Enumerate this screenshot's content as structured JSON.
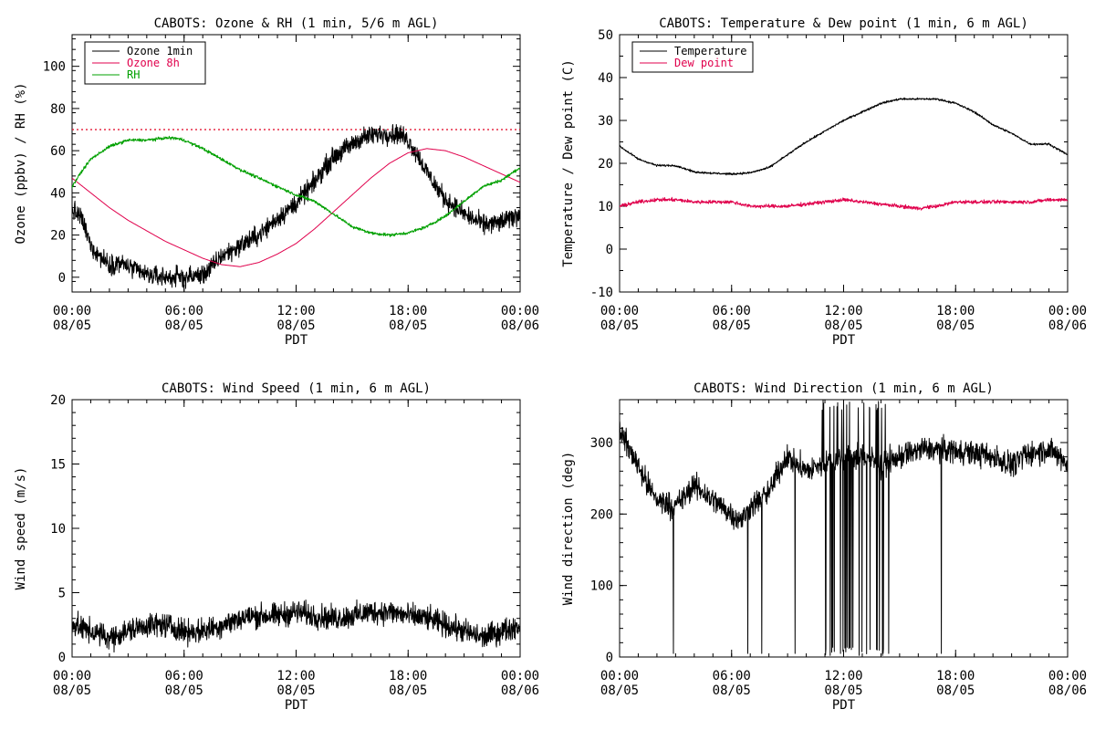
{
  "chart_data": [
    {
      "type": "line",
      "title": "CABOTS: Ozone & RH (1 min, 5/6 m AGL)",
      "xlabel": "PDT",
      "ylabel": "Ozone (ppbv) / RH (%)",
      "xticks": [
        {
          "time": "00:00",
          "date": "08/05"
        },
        {
          "time": "06:00",
          "date": "08/05"
        },
        {
          "time": "12:00",
          "date": "08/05"
        },
        {
          "time": "18:00",
          "date": "08/05"
        },
        {
          "time": "00:00",
          "date": "08/06"
        }
      ],
      "xlim_hours": [
        0,
        24
      ],
      "ylim": [
        -7,
        115
      ],
      "yticks": [
        0,
        20,
        40,
        60,
        80,
        100
      ],
      "grid": false,
      "legend_position": "top-left",
      "reference_line": {
        "y": 70,
        "style": "dotted",
        "color": "#e00020"
      },
      "series": [
        {
          "name": "Ozone 1min",
          "color": "#000000",
          "noise": 4,
          "points": [
            [
              0,
              32
            ],
            [
              0.5,
              28
            ],
            [
              1,
              15
            ],
            [
              1.5,
              10
            ],
            [
              2,
              6
            ],
            [
              2.5,
              7
            ],
            [
              3,
              5
            ],
            [
              3.5,
              3
            ],
            [
              4,
              1
            ],
            [
              5,
              0
            ],
            [
              6,
              0
            ],
            [
              7,
              1
            ],
            [
              7.5,
              5
            ],
            [
              8,
              10
            ],
            [
              9,
              15
            ],
            [
              10,
              20
            ],
            [
              11,
              28
            ],
            [
              12,
              35
            ],
            [
              12.5,
              40
            ],
            [
              13,
              45
            ],
            [
              13.5,
              52
            ],
            [
              14,
              57
            ],
            [
              15,
              63
            ],
            [
              15.5,
              66
            ],
            [
              16,
              67
            ],
            [
              16.5,
              68
            ],
            [
              17,
              68
            ],
            [
              17.5,
              68
            ],
            [
              18,
              65
            ],
            [
              18.5,
              58
            ],
            [
              19,
              50
            ],
            [
              19.5,
              43
            ],
            [
              20,
              37
            ],
            [
              21,
              30
            ],
            [
              22,
              25
            ],
            [
              23,
              26
            ],
            [
              24,
              30
            ]
          ]
        },
        {
          "name": "Ozone 8h",
          "color": "#e0004c",
          "noise": 0,
          "points": [
            [
              0,
              47
            ],
            [
              1,
              40
            ],
            [
              2,
              33
            ],
            [
              3,
              27
            ],
            [
              4,
              22
            ],
            [
              5,
              17
            ],
            [
              6,
              13
            ],
            [
              7,
              9
            ],
            [
              8,
              6
            ],
            [
              9,
              5
            ],
            [
              10,
              7
            ],
            [
              11,
              11
            ],
            [
              12,
              16
            ],
            [
              13,
              23
            ],
            [
              14,
              31
            ],
            [
              15,
              39
            ],
            [
              16,
              47
            ],
            [
              17,
              54
            ],
            [
              18,
              59
            ],
            [
              19,
              61
            ],
            [
              20,
              60
            ],
            [
              21,
              57
            ],
            [
              22,
              53
            ],
            [
              23,
              49
            ],
            [
              24,
              45
            ]
          ]
        },
        {
          "name": "RH",
          "color": "#00a000",
          "noise": 0.6,
          "points": [
            [
              0,
              43
            ],
            [
              0.5,
              50
            ],
            [
              1,
              56
            ],
            [
              2,
              62
            ],
            [
              3,
              65
            ],
            [
              4,
              65
            ],
            [
              5,
              66
            ],
            [
              5.5,
              66
            ],
            [
              6,
              65
            ],
            [
              7,
              61
            ],
            [
              8,
              56
            ],
            [
              9,
              51
            ],
            [
              10,
              47
            ],
            [
              11,
              43
            ],
            [
              12,
              39
            ],
            [
              13,
              36
            ],
            [
              14,
              30
            ],
            [
              15,
              24
            ],
            [
              16,
              21
            ],
            [
              17,
              20
            ],
            [
              18,
              21
            ],
            [
              19,
              24
            ],
            [
              20,
              29
            ],
            [
              21,
              36
            ],
            [
              22,
              43
            ],
            [
              23,
              46
            ],
            [
              24,
              52
            ]
          ]
        }
      ]
    },
    {
      "type": "line",
      "title": "CABOTS: Temperature & Dew point (1 min, 6 m AGL)",
      "xlabel": "PDT",
      "ylabel": "Temperature / Dew point (C)",
      "xticks": [
        {
          "time": "00:00",
          "date": "08/05"
        },
        {
          "time": "06:00",
          "date": "08/05"
        },
        {
          "time": "12:00",
          "date": "08/05"
        },
        {
          "time": "18:00",
          "date": "08/05"
        },
        {
          "time": "00:00",
          "date": "08/06"
        }
      ],
      "xlim_hours": [
        0,
        24
      ],
      "ylim": [
        -10,
        50
      ],
      "yticks": [
        -10,
        0,
        10,
        20,
        30,
        40,
        50
      ],
      "grid": false,
      "legend_position": "top-left",
      "series": [
        {
          "name": "Temperature",
          "color": "#000000",
          "noise": 0.2,
          "points": [
            [
              0,
              24
            ],
            [
              1,
              21
            ],
            [
              2,
              19.5
            ],
            [
              3,
              19.5
            ],
            [
              4,
              18
            ],
            [
              5,
              17.7
            ],
            [
              6,
              17.5
            ],
            [
              7,
              17.8
            ],
            [
              8,
              19
            ],
            [
              9,
              22
            ],
            [
              10,
              25
            ],
            [
              11,
              27.5
            ],
            [
              12,
              30
            ],
            [
              13,
              32
            ],
            [
              14,
              34
            ],
            [
              15,
              35
            ],
            [
              16,
              35
            ],
            [
              17,
              35
            ],
            [
              18,
              34
            ],
            [
              19,
              32
            ],
            [
              20,
              29
            ],
            [
              21,
              27
            ],
            [
              22,
              24.5
            ],
            [
              23,
              24.5
            ],
            [
              24,
              22
            ]
          ]
        },
        {
          "name": "Dew point",
          "color": "#e0004c",
          "noise": 0.35,
          "points": [
            [
              0,
              10
            ],
            [
              1,
              11
            ],
            [
              2,
              11.5
            ],
            [
              3,
              11.5
            ],
            [
              4,
              11
            ],
            [
              5,
              11
            ],
            [
              6,
              11
            ],
            [
              7,
              10
            ],
            [
              8,
              10
            ],
            [
              9,
              10
            ],
            [
              10,
              10.5
            ],
            [
              11,
              11
            ],
            [
              12,
              11.5
            ],
            [
              13,
              11
            ],
            [
              14,
              10.5
            ],
            [
              15,
              10
            ],
            [
              16,
              9.5
            ],
            [
              17,
              10
            ],
            [
              18,
              11
            ],
            [
              19,
              11
            ],
            [
              20,
              11
            ],
            [
              21,
              11
            ],
            [
              22,
              11
            ],
            [
              23,
              11.5
            ],
            [
              24,
              11.5
            ]
          ]
        }
      ]
    },
    {
      "type": "line",
      "title": "CABOTS: Wind Speed (1 min, 6 m AGL)",
      "xlabel": "PDT",
      "ylabel": "Wind speed (m/s)",
      "xticks": [
        {
          "time": "00:00",
          "date": "08/05"
        },
        {
          "time": "06:00",
          "date": "08/05"
        },
        {
          "time": "12:00",
          "date": "08/05"
        },
        {
          "time": "18:00",
          "date": "08/05"
        },
        {
          "time": "00:00",
          "date": "08/06"
        }
      ],
      "xlim_hours": [
        0,
        24
      ],
      "ylim": [
        0,
        20
      ],
      "yticks": [
        0,
        5,
        10,
        15,
        20
      ],
      "grid": false,
      "series": [
        {
          "name": "",
          "color": "#000000",
          "noise": 0.8,
          "points": [
            [
              0,
              2.5
            ],
            [
              1,
              2
            ],
            [
              2,
              1.5
            ],
            [
              3,
              2
            ],
            [
              4,
              2.5
            ],
            [
              5,
              2.5
            ],
            [
              6,
              2
            ],
            [
              7,
              2
            ],
            [
              8,
              2.5
            ],
            [
              9,
              3
            ],
            [
              10,
              3.2
            ],
            [
              11,
              3.2
            ],
            [
              12,
              3.5
            ],
            [
              13,
              3.2
            ],
            [
              14,
              3
            ],
            [
              15,
              3.2
            ],
            [
              16,
              3.5
            ],
            [
              17,
              3.5
            ],
            [
              18,
              3.2
            ],
            [
              19,
              3
            ],
            [
              20,
              2.5
            ],
            [
              21,
              2
            ],
            [
              22,
              1.5
            ],
            [
              23,
              2
            ],
            [
              24,
              2.5
            ]
          ]
        }
      ]
    },
    {
      "type": "line",
      "title": "CABOTS: Wind Direction (1 min, 6 m AGL)",
      "xlabel": "PDT",
      "ylabel": "Wind direction (deg)",
      "xticks": [
        {
          "time": "00:00",
          "date": "08/05"
        },
        {
          "time": "06:00",
          "date": "08/05"
        },
        {
          "time": "12:00",
          "date": "08/05"
        },
        {
          "time": "18:00",
          "date": "08/05"
        },
        {
          "time": "00:00",
          "date": "08/06"
        }
      ],
      "xlim_hours": [
        0,
        24
      ],
      "ylim": [
        0,
        360
      ],
      "yticks": [
        0,
        100,
        200,
        300
      ],
      "grid": false,
      "series": [
        {
          "name": "",
          "color": "#000000",
          "noise": 15,
          "spike_windows": [
            [
              10.7,
              14.3
            ]
          ],
          "points": [
            [
              0,
              320
            ],
            [
              0.5,
              290
            ],
            [
              1,
              270
            ],
            [
              1.5,
              240
            ],
            [
              2,
              220
            ],
            [
              3,
              210
            ],
            [
              4,
              240
            ],
            [
              5,
              220
            ],
            [
              6,
              200
            ],
            [
              6.5,
              190
            ],
            [
              7,
              210
            ],
            [
              8,
              230
            ],
            [
              8.5,
              260
            ],
            [
              9,
              280
            ],
            [
              10,
              260
            ],
            [
              11,
              270
            ],
            [
              12,
              280
            ],
            [
              13,
              280
            ],
            [
              14,
              270
            ],
            [
              15,
              280
            ],
            [
              16,
              290
            ],
            [
              17,
              290
            ],
            [
              18,
              290
            ],
            [
              19,
              285
            ],
            [
              20,
              280
            ],
            [
              21,
              270
            ],
            [
              22,
              285
            ],
            [
              23,
              290
            ],
            [
              24,
              270
            ]
          ]
        }
      ]
    }
  ]
}
